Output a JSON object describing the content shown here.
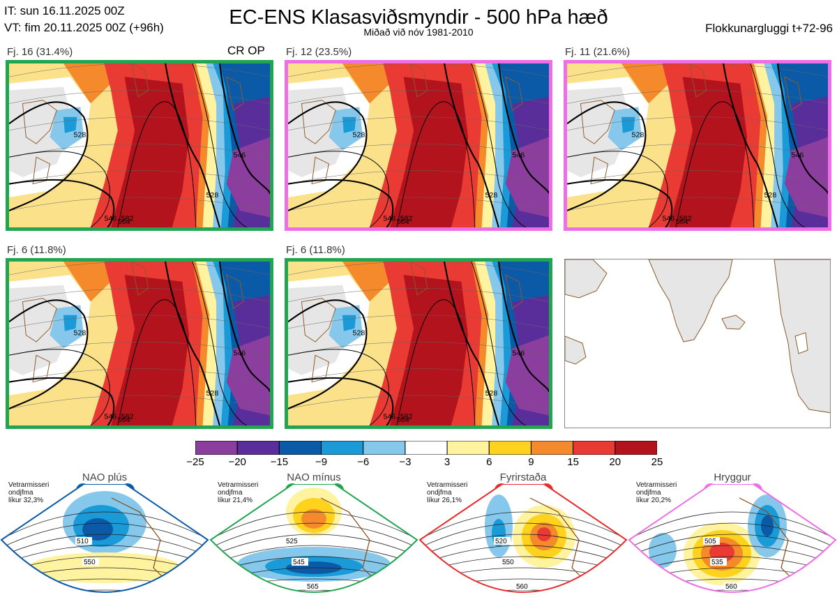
{
  "header": {
    "init_time": "IT: sun 16.11.2025 00Z",
    "valid_time": "VT: fim 20.11.2025 00Z  (+96h)",
    "title": "EC-ENS Klasasviðsmyndir - 500 hPa hæð",
    "subtitle": "Miðað við nóv 1981-2010",
    "window": "Flokkunargluggi t+72-96"
  },
  "cr_op_label": "CR OP",
  "panels": [
    {
      "label": "Fj. 16 (31.4%)",
      "border": "#22a550",
      "contours": [
        "528",
        "546",
        "564",
        "582",
        "528",
        "546"
      ]
    },
    {
      "label": "Fj. 12 (23.5%)",
      "border": "#ee6ee6",
      "contours": [
        "528",
        "546",
        "564",
        "582",
        "528",
        "546"
      ]
    },
    {
      "label": "Fj. 11 (21.6%)",
      "border": "#ee6ee6",
      "contours": [
        "528",
        "546",
        "564",
        "582",
        "528",
        "546"
      ]
    },
    {
      "label": "Fj. 6 (11.8%)",
      "border": "#22a550",
      "contours": [
        "528",
        "546",
        "564",
        "582",
        "528",
        "546"
      ]
    },
    {
      "label": "Fj. 6 (11.8%)",
      "border": "#22a550",
      "contours": [
        "528",
        "546",
        "564",
        "582",
        "528",
        "546"
      ]
    }
  ],
  "colorbar": {
    "ticks": [
      "−25",
      "−20",
      "−15",
      "−9",
      "−6",
      "−3",
      "3",
      "6",
      "9",
      "15",
      "20",
      "25"
    ],
    "colors": [
      "#8b3e9e",
      "#5a2e9a",
      "#0b5aa8",
      "#1a9ad6",
      "#86c8ec",
      "#ffffff",
      "#fff3a0",
      "#ffd21e",
      "#f48a2c",
      "#ea3a34",
      "#b3131c"
    ]
  },
  "regimes": [
    {
      "title": "NAO plús",
      "color": "#0b5aa8",
      "info": [
        "Vetrarmisseri",
        "ondjfma",
        "líkur 32,3%"
      ],
      "contours": [
        "510",
        "550"
      ],
      "dot_count": 2
    },
    {
      "title": "NAO mínus",
      "color": "#22a550",
      "info": [
        "Vetrarmisseri",
        "ondjfma",
        "líkur 21,4%"
      ],
      "contours": [
        "525",
        "545",
        "565"
      ],
      "dot_count": 2
    },
    {
      "title": "Fyrirstaða",
      "color": "#ea2a2a",
      "info": [
        "Vetrarmisseri",
        "ondjfma",
        "líkur 26,1%"
      ],
      "contours": [
        "520",
        "550",
        "560"
      ],
      "dot_count": 2
    },
    {
      "title": "Hryggur",
      "color": "#ee6ee6",
      "info": [
        "Vetrarmisseri",
        "ondjfma",
        "líkur 20,2%"
      ],
      "contours": [
        "505",
        "535",
        "560"
      ],
      "dot_count": 2
    }
  ]
}
